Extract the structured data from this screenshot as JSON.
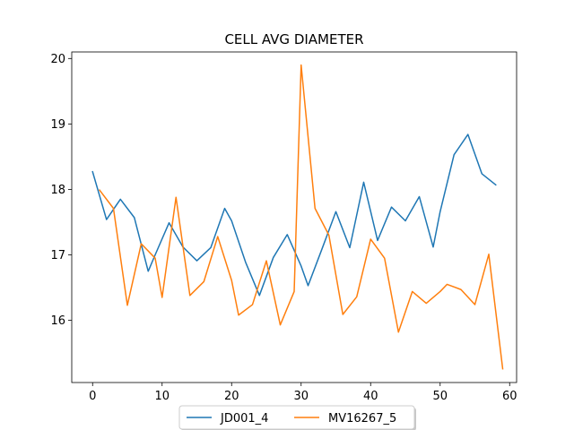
{
  "chart_data": {
    "type": "line",
    "title": "CELL AVG  DIAMETER",
    "xlabel": "",
    "ylabel": "",
    "xlim": [
      -3,
      61
    ],
    "ylim": [
      15.05,
      20.1
    ],
    "xticks": [
      0,
      10,
      20,
      30,
      40,
      50,
      60
    ],
    "yticks": [
      16,
      17,
      18,
      19,
      20
    ],
    "grid": false,
    "legend_position": "bottom-center",
    "series": [
      {
        "name": "JD001_4",
        "color": "#1f77b4",
        "x": [
          0,
          2,
          4,
          6,
          8,
          9,
          11,
          13,
          15,
          17,
          19,
          20,
          22,
          24,
          26,
          28,
          30,
          31,
          33,
          35,
          37,
          39,
          41,
          43,
          45,
          47,
          49,
          50,
          52,
          54,
          56,
          58
        ],
        "y": [
          18.27,
          17.54,
          17.85,
          17.57,
          16.75,
          17.0,
          17.49,
          17.12,
          16.91,
          17.11,
          17.71,
          17.52,
          16.89,
          16.38,
          16.96,
          17.31,
          16.83,
          16.53,
          17.09,
          17.66,
          17.11,
          18.11,
          17.22,
          17.73,
          17.52,
          17.89,
          17.12,
          17.66,
          18.53,
          18.84,
          18.24,
          18.07
        ]
      },
      {
        "name": "MV16267_5",
        "color": "#ff7f0e",
        "x": [
          1,
          3,
          5,
          7,
          9,
          10,
          12,
          14,
          16,
          18,
          20,
          21,
          23,
          25,
          27,
          29,
          30,
          32,
          34,
          36,
          38,
          40,
          42,
          44,
          46,
          48,
          50,
          51,
          53,
          55,
          57,
          59
        ],
        "y": [
          17.99,
          17.71,
          16.23,
          17.17,
          16.95,
          16.35,
          17.88,
          16.38,
          16.59,
          17.28,
          16.61,
          16.08,
          16.24,
          16.91,
          15.93,
          16.44,
          19.9,
          17.71,
          17.3,
          16.09,
          16.36,
          17.24,
          16.95,
          15.82,
          16.44,
          16.26,
          16.44,
          16.55,
          16.47,
          16.24,
          17.01,
          15.26
        ]
      }
    ]
  }
}
